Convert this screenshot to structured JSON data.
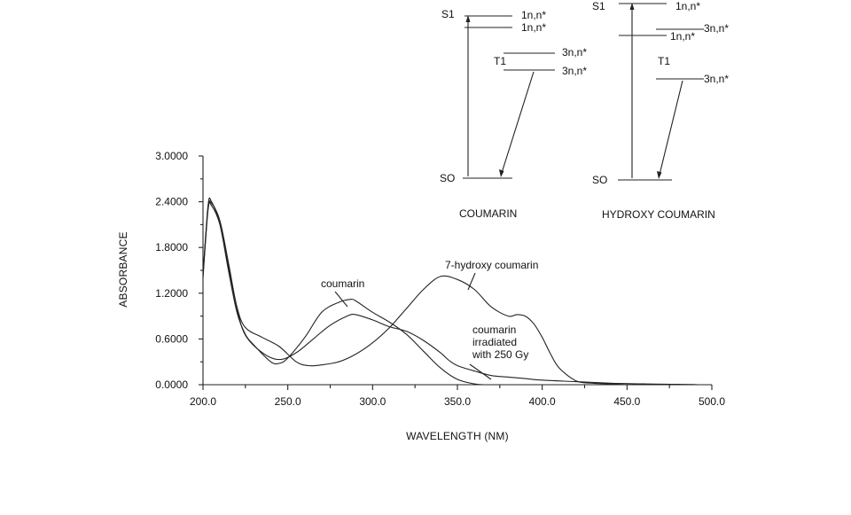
{
  "chart_data": {
    "type": "line",
    "xlabel": "WAVELENGTH (NM)",
    "ylabel": "ABSORBANCE",
    "xlim": [
      200,
      500
    ],
    "ylim": [
      0,
      3
    ],
    "x_ticks": [
      "200.0",
      "250.0",
      "300.0",
      "350.0",
      "400.0",
      "450.0",
      "500.0"
    ],
    "x_tick_values": [
      200,
      250,
      300,
      350,
      400,
      450,
      500
    ],
    "y_ticks": [
      "0.0000",
      "0.6000",
      "1.2000",
      "1.8000",
      "2.4000",
      "3.0000"
    ],
    "y_tick_values": [
      0,
      0.6,
      1.2,
      1.8,
      2.4,
      3.0
    ],
    "series": [
      {
        "name": "coumarin",
        "x": [
          200,
          203,
          205,
          210,
          215,
          220,
          225,
          230,
          240,
          245,
          250,
          260,
          270,
          280,
          287,
          290,
          300,
          310,
          320,
          330,
          340,
          350,
          360,
          365
        ],
        "y": [
          1.45,
          2.35,
          2.4,
          2.1,
          1.5,
          0.95,
          0.66,
          0.52,
          0.3,
          0.28,
          0.35,
          0.62,
          0.95,
          1.08,
          1.12,
          1.1,
          0.95,
          0.82,
          0.66,
          0.44,
          0.22,
          0.07,
          0.01,
          0.0
        ]
      },
      {
        "name": "7-hydroxy coumarin",
        "x": [
          200,
          203,
          205,
          210,
          215,
          220,
          225,
          235,
          245,
          255,
          262,
          270,
          280,
          290,
          300,
          310,
          320,
          330,
          340,
          350,
          360,
          370,
          380,
          385,
          390,
          395,
          400,
          405,
          410,
          420,
          430,
          440,
          450
        ],
        "y": [
          1.4,
          2.3,
          2.38,
          2.15,
          1.6,
          1.02,
          0.75,
          0.62,
          0.5,
          0.3,
          0.25,
          0.26,
          0.3,
          0.4,
          0.55,
          0.75,
          1.0,
          1.25,
          1.42,
          1.38,
          1.25,
          1.02,
          0.9,
          0.92,
          0.9,
          0.8,
          0.62,
          0.4,
          0.22,
          0.05,
          0.02,
          0.01,
          0.0
        ]
      },
      {
        "name": "coumarin irradiated with 250 Gy",
        "x": [
          200,
          203,
          205,
          210,
          215,
          220,
          225,
          235,
          245,
          255,
          265,
          275,
          285,
          290,
          300,
          310,
          320,
          330,
          340,
          345,
          350,
          360,
          370,
          380,
          390,
          400,
          420,
          440,
          460,
          480,
          492
        ],
        "y": [
          1.45,
          2.3,
          2.35,
          2.1,
          1.55,
          1.0,
          0.65,
          0.42,
          0.33,
          0.42,
          0.6,
          0.78,
          0.9,
          0.92,
          0.85,
          0.76,
          0.7,
          0.58,
          0.42,
          0.32,
          0.25,
          0.18,
          0.12,
          0.1,
          0.08,
          0.06,
          0.04,
          0.02,
          0.01,
          0.005,
          0.0
        ]
      }
    ],
    "annotations": [
      {
        "text": "coumarin",
        "series": 0
      },
      {
        "text": "7-hydroxy coumarin",
        "series": 1
      },
      {
        "lines": [
          "coumarin",
          "irradiated",
          "with 250 Gy"
        ],
        "series": 2
      }
    ]
  },
  "energy_diagrams": [
    {
      "caption": "COUMARIN",
      "s0": "SO",
      "s1": "S1",
      "t1": "T1",
      "levels": [
        "1n,n*",
        "1n,n*",
        "3n,n*",
        "3n,n*"
      ]
    },
    {
      "caption": "HYDROXY COUMARIN",
      "s0": "SO",
      "s1": "S1",
      "t1": "T1",
      "levels": [
        "1n,n*",
        "3n,n*",
        "1n,n*",
        "3n,n*"
      ]
    }
  ]
}
